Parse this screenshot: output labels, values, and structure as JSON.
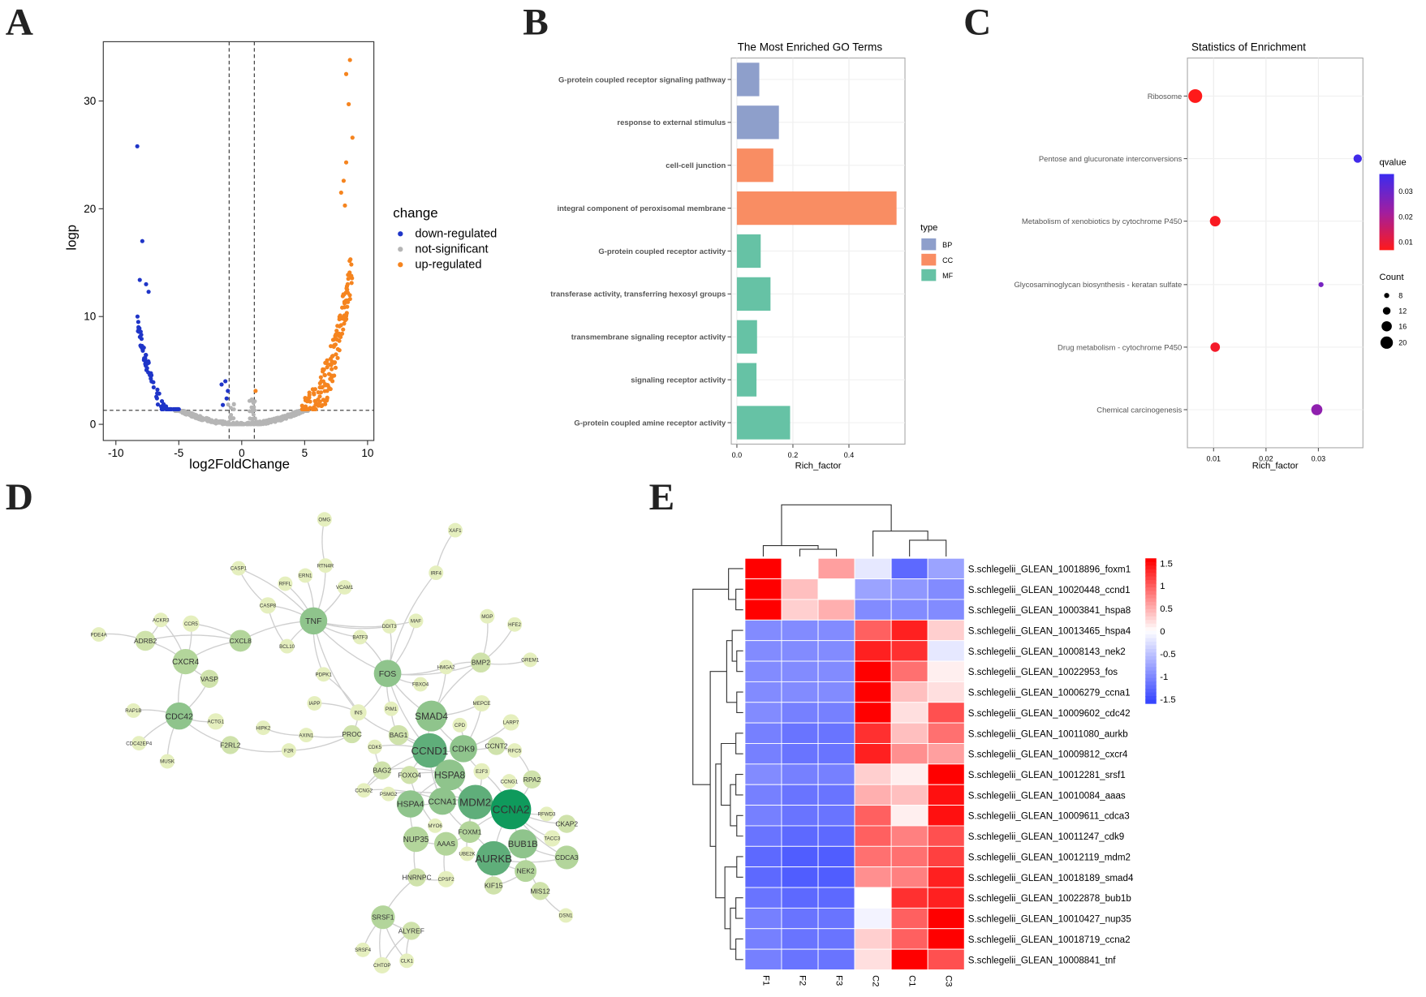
{
  "chart_data": [
    {
      "panel": "A",
      "type": "scatter",
      "title": "",
      "xlabel": "log2FoldChange",
      "ylabel": "logp",
      "xlim": [
        -11,
        10.5
      ],
      "ylim": [
        -1.5,
        35.5
      ],
      "xticks": [
        -10,
        -5,
        0,
        5,
        10
      ],
      "yticks": [
        0,
        10,
        20,
        30
      ],
      "thresholds": {
        "x": [
          -1,
          1
        ],
        "y": 1.3
      },
      "legend_title": "change",
      "series": [
        {
          "name": "down-regulated",
          "color": "#1f35c8"
        },
        {
          "name": "not-significant",
          "color": "#b5b5b5"
        },
        {
          "name": "up-regulated",
          "color": "#f5841f"
        }
      ]
    },
    {
      "panel": "B",
      "type": "bar",
      "orientation": "horizontal",
      "title": "The Most Enriched GO Terms",
      "xlabel": "Rich_factor",
      "xlim": [
        -0.02,
        0.6
      ],
      "xticks": [
        0.0,
        0.2,
        0.4
      ],
      "xtick_labels": [
        "0.0",
        "0.2",
        "0.4"
      ],
      "legend_title": "type",
      "legend": [
        {
          "name": "BP",
          "color": "#8e9fcb"
        },
        {
          "name": "CC",
          "color": "#f98d63"
        },
        {
          "name": "MF",
          "color": "#66c2a5"
        }
      ],
      "categories": [
        "G-protein coupled receptor signaling pathway",
        "response to external stimulus",
        "cell-cell junction",
        "integral component of peroxisomal membrane",
        "G-protein coupled receptor activity",
        "transferase activity, transferring hexosyl groups",
        "transmembrane signaling receptor activity",
        "signaling receptor activity",
        "G-protein coupled amine receptor activity"
      ],
      "values": [
        0.08,
        0.15,
        0.13,
        0.57,
        0.085,
        0.12,
        0.072,
        0.07,
        0.19
      ],
      "types": [
        "BP",
        "BP",
        "CC",
        "CC",
        "MF",
        "MF",
        "MF",
        "MF",
        "MF"
      ]
    },
    {
      "panel": "C",
      "type": "scatter",
      "title": "Statistics of Enrichment",
      "xlabel": "Rich_factor",
      "xlim": [
        0.005,
        0.0385
      ],
      "xticks": [
        0.01,
        0.02,
        0.03
      ],
      "xtick_labels": [
        "0.01",
        "0.02",
        "0.03"
      ],
      "categories": [
        "Ribosome",
        "Pentose and glucuronate interconversions",
        "Metabolism of xenobiotics by cytochrome P450",
        "Glycosaminoglycan biosynthesis - keratan sulfate",
        "Drug metabolism - cytochrome P450",
        "Chemical carcinogenesis"
      ],
      "x": [
        0.0065,
        0.0375,
        0.0103,
        0.0305,
        0.0103,
        0.0297
      ],
      "qvalue": [
        0.001,
        0.034,
        0.002,
        0.025,
        0.003,
        0.021
      ],
      "count": [
        20,
        10,
        14,
        4,
        12,
        15
      ],
      "legend": {
        "color_title": "qvalue",
        "color_ticks": [
          "0.03",
          "0.02",
          "0.01"
        ],
        "size_title": "Count",
        "size_ticks": [
          "8",
          "12",
          "16",
          "20"
        ]
      }
    },
    {
      "panel": "E",
      "type": "heatmap",
      "columns": [
        "F1",
        "F2",
        "F3",
        "C2",
        "C1",
        "C3"
      ],
      "rows": [
        "S.schlegelii_GLEAN_10018896_foxm1",
        "S.schlegelii_GLEAN_10020448_ccnd1",
        "S.schlegelii_GLEAN_10003841_hspa8",
        "S.schlegelii_GLEAN_10013465_hspa4",
        "S.schlegelii_GLEAN_10008143_nek2",
        "S.schlegelii_GLEAN_10022953_fos",
        "S.schlegelii_GLEAN_10006279_ccna1",
        "S.schlegelii_GLEAN_10009602_cdc42",
        "S.schlegelii_GLEAN_10011080_aurkb",
        "S.schlegelii_GLEAN_10009812_cxcr4",
        "S.schlegelii_GLEAN_10012281_srsf1",
        "S.schlegelii_GLEAN_10010084_aaas",
        "S.schlegelii_GLEAN_10009611_cdca3",
        "S.schlegelii_GLEAN_10011247_cdk9",
        "S.schlegelii_GLEAN_10012119_mdm2",
        "S.schlegelii_GLEAN_10018189_smad4",
        "S.schlegelii_GLEAN_10022878_bub1b",
        "S.schlegelii_GLEAN_10010427_nup35",
        "S.schlegelii_GLEAN_10018719_ccna2",
        "S.schlegelii_GLEAN_10008841_tnf"
      ],
      "values": [
        [
          1.6,
          0.0,
          0.6,
          -0.2,
          -1.3,
          -0.8
        ],
        [
          1.6,
          0.4,
          0.0,
          -0.8,
          -0.9,
          -1.0
        ],
        [
          1.6,
          0.3,
          0.5,
          -1.0,
          -1.0,
          -1.0
        ],
        [
          -1.0,
          -1.0,
          -1.0,
          1.0,
          1.4,
          0.3
        ],
        [
          -1.0,
          -1.0,
          -1.0,
          1.4,
          1.3,
          -0.2
        ],
        [
          -1.0,
          -1.0,
          -1.0,
          1.7,
          0.9,
          0.1
        ],
        [
          -1.0,
          -1.0,
          -1.0,
          1.8,
          0.4,
          0.2
        ],
        [
          -1.0,
          -1.1,
          -1.1,
          1.6,
          0.2,
          1.1
        ],
        [
          -1.1,
          -1.2,
          -1.2,
          1.3,
          0.4,
          0.9
        ],
        [
          -1.1,
          -1.2,
          -1.2,
          1.4,
          0.7,
          0.6
        ],
        [
          -1.0,
          -1.1,
          -1.1,
          0.3,
          0.1,
          1.8
        ],
        [
          -1.1,
          -1.2,
          -1.2,
          0.5,
          0.4,
          1.5
        ],
        [
          -1.1,
          -1.2,
          -1.2,
          1.0,
          0.1,
          1.5
        ],
        [
          -1.2,
          -1.3,
          -1.3,
          1.0,
          0.8,
          1.1
        ],
        [
          -1.3,
          -1.4,
          -1.4,
          0.9,
          0.9,
          1.2
        ],
        [
          -1.3,
          -1.4,
          -1.4,
          0.7,
          0.8,
          1.4
        ],
        [
          -1.2,
          -1.3,
          -1.3,
          0.0,
          1.3,
          1.4
        ],
        [
          -1.1,
          -1.2,
          -1.2,
          -0.1,
          1.0,
          1.7
        ],
        [
          -1.1,
          -1.2,
          -1.2,
          0.3,
          1.0,
          1.6
        ],
        [
          -1.1,
          -1.2,
          -1.2,
          0.2,
          1.8,
          1.1
        ]
      ],
      "colorbar": {
        "range": [
          -1.6,
          1.6
        ],
        "ticks": [
          "1.5",
          "1",
          "0.5",
          "0",
          "-0.5",
          "-1",
          "-1.5"
        ]
      }
    }
  ],
  "panels": {
    "a": {
      "letter": "A"
    },
    "b": {
      "letter": "B"
    },
    "c": {
      "letter": "C"
    },
    "d": {
      "letter": "D"
    },
    "e": {
      "letter": "E"
    }
  },
  "network": {
    "genes": [
      "TNF",
      "FOS",
      "CXCR4",
      "CDC42",
      "SMAD4",
      "CCND1",
      "CDK9",
      "HSPA8",
      "HSPA4",
      "CCNA1",
      "MDM2",
      "CCNA2",
      "NUP35",
      "AAAS",
      "FOXM1",
      "BUB1B",
      "AURKB",
      "NEK2",
      "CDCA3",
      "SRSF1",
      "CXCL8",
      "ADRB2",
      "VASP",
      "BMP2",
      "CASP8",
      "OMG",
      "XAF1",
      "IRF4",
      "RTN4R",
      "ERN1",
      "VCAM1",
      "CASP1",
      "RFFL",
      "MAF",
      "DDIT3",
      "BATF3",
      "BCL10",
      "CCR5",
      "ACKR3",
      "PDE4A",
      "RAP1B",
      "CDC42EP4",
      "MUSK",
      "ACTG1",
      "HIPK2",
      "F2RL2",
      "AXIN1",
      "F2R",
      "PROC",
      "INS",
      "IAPP",
      "PDPK1",
      "PIM1",
      "BAG1",
      "FBXO4",
      "HMGA2",
      "MGP",
      "HFE2",
      "GREM1",
      "MEPCE",
      "LARP7",
      "CPD",
      "CCNT2",
      "RFC5",
      "E2F3",
      "CCNG1",
      "RPA2",
      "CDK5",
      "BAG2",
      "FOXO4",
      "PSMG2",
      "CCNG2",
      "RFWD3",
      "CKAP2",
      "TACC3",
      "MYO6",
      "UBE2K",
      "CPSF2",
      "HNRNPC",
      "KIF15",
      "MIS12",
      "DSN1",
      "ALYREF",
      "SRSF4",
      "CHTOP",
      "CLK1"
    ]
  }
}
